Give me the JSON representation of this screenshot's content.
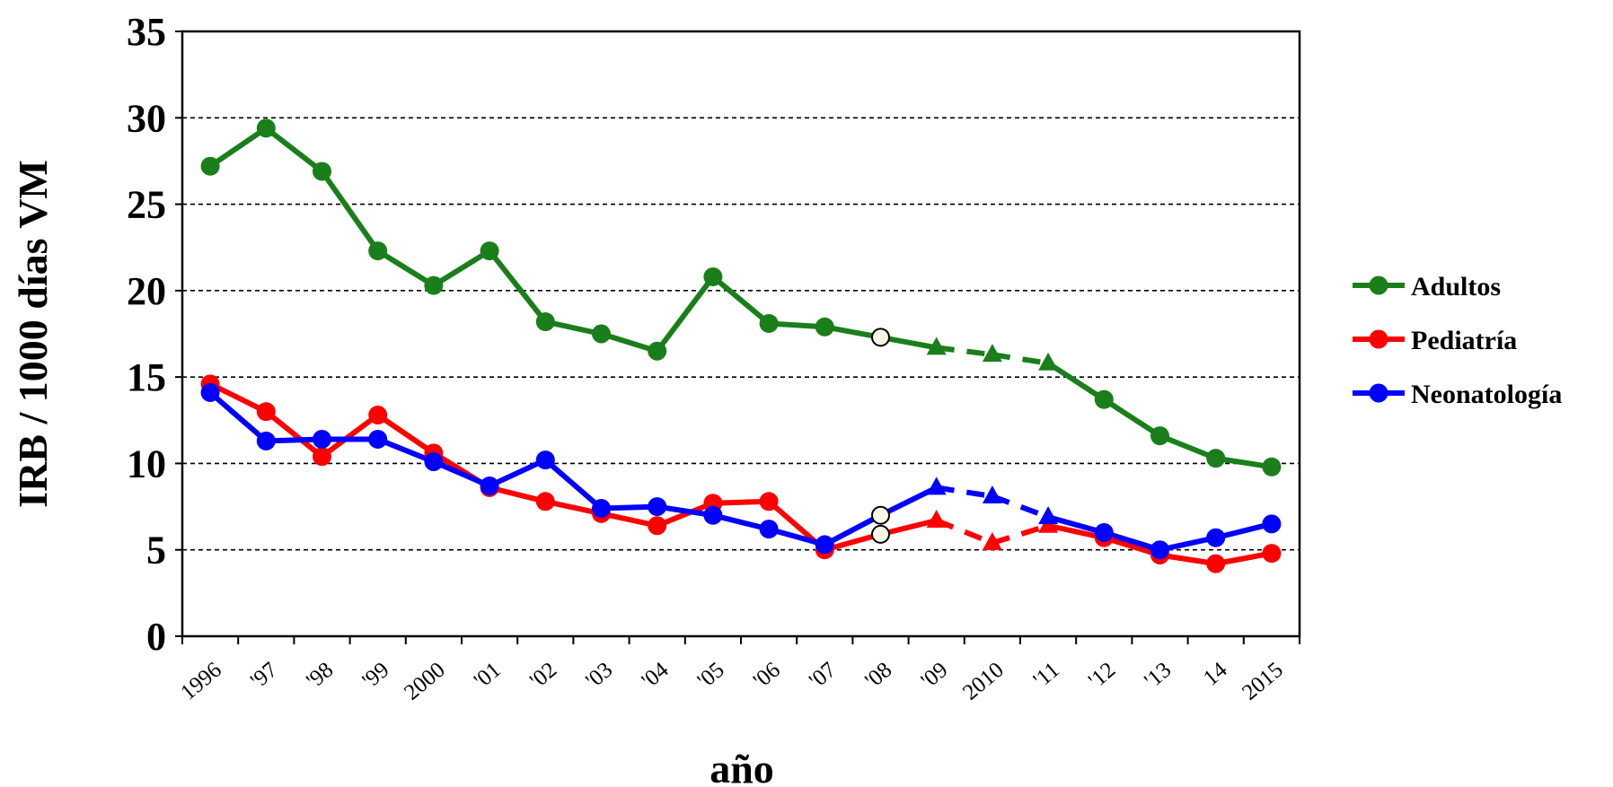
{
  "chart_data": {
    "type": "line",
    "title": "",
    "xlabel": "año",
    "ylabel": "IRB / 1000 días VM",
    "categories": [
      "1996",
      "'97",
      "'98",
      "'99",
      "2000",
      "'01",
      "'02",
      "'03",
      "'04",
      "'05",
      "'06",
      "'07",
      "'08",
      "'09",
      "2010",
      "'11",
      "'12",
      "'13",
      "14",
      "2015"
    ],
    "ylim": [
      0,
      35
    ],
    "yticks": [
      0,
      5,
      10,
      15,
      20,
      25,
      30,
      35
    ],
    "grid": "horizontal dashed",
    "legend_position": "right",
    "series": [
      {
        "name": "Adultos",
        "color": "#1a7f1a",
        "values": [
          27.2,
          29.4,
          26.9,
          22.3,
          20.3,
          22.3,
          18.2,
          17.5,
          16.5,
          20.8,
          18.1,
          17.9,
          17.3,
          16.7,
          16.3,
          15.8,
          13.7,
          11.6,
          10.3,
          9.8
        ]
      },
      {
        "name": "Pediatría",
        "color": "#ff0000",
        "values": [
          14.6,
          13.0,
          10.4,
          12.8,
          10.6,
          8.6,
          7.8,
          7.1,
          6.4,
          7.7,
          7.8,
          5.0,
          5.9,
          6.7,
          5.4,
          6.4,
          5.7,
          4.7,
          4.2,
          4.8
        ]
      },
      {
        "name": "Neonatología",
        "color": "#0000ff",
        "values": [
          14.1,
          11.3,
          11.4,
          11.4,
          10.1,
          8.7,
          10.2,
          7.4,
          7.5,
          7.0,
          6.2,
          5.3,
          7.0,
          8.6,
          8.1,
          6.9,
          6.0,
          5.0,
          5.7,
          6.5
        ]
      }
    ],
    "markers": {
      "open_circle_categories": [
        "'08"
      ],
      "triangle_categories": [
        "'09",
        "2010",
        "'11"
      ],
      "dashed_segments_between": [
        "'09",
        "'11"
      ]
    }
  }
}
